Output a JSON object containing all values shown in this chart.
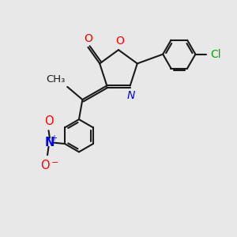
{
  "bg_color": "#e8e8e8",
  "bond_color": "#1a1a1a",
  "bond_width": 1.5,
  "atom_colors": {
    "O": "#ff0000",
    "N": "#0000ff",
    "Cl": "#00aa00",
    "C": "#1a1a1a"
  },
  "font_size": 10,
  "ring_O_label": "O",
  "carbonyl_O_label": "O",
  "N_label": "N",
  "Cl_label": "Cl",
  "NO2_N_label": "N",
  "NO2_O1_label": "O",
  "NO2_O2_label": "O"
}
